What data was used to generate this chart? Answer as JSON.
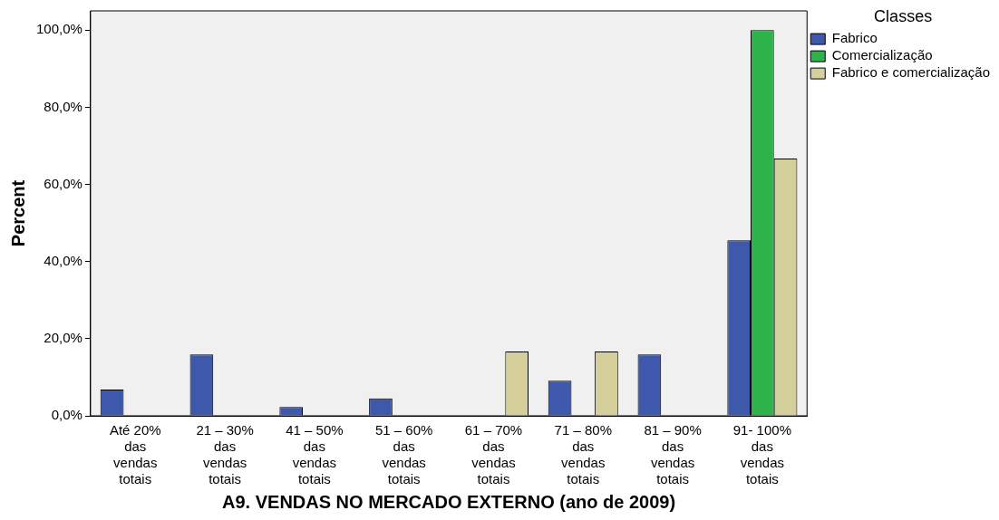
{
  "chart_data": {
    "type": "bar",
    "xlabel": "A9. VENDAS NO MERCADO EXTERNO (ano de 2009)",
    "ylabel": "Percent",
    "legend_title": "Classes",
    "legend": "top right",
    "categories": [
      "Até 20% das vendas totais",
      "21 – 30% das vendas totais",
      "41 – 50% das vendas totais",
      "51 – 60% das vendas totais",
      "61 – 70% das vendas totais",
      "71 – 80% das vendas totais",
      "81 – 90% das vendas totais",
      "91- 100% das vendas totais"
    ],
    "series": [
      {
        "name": "Fabrico",
        "color": "#3e58ac",
        "values": [
          6.8,
          15.9,
          2.3,
          4.5,
          null,
          9.1,
          15.9,
          45.5
        ]
      },
      {
        "name": "Comercialização",
        "color": "#2db34a",
        "values": [
          null,
          null,
          null,
          null,
          null,
          null,
          null,
          100
        ]
      },
      {
        "name": "Fabrico e comercialização",
        "color": "#d4cf9b",
        "values": [
          null,
          null,
          null,
          null,
          16.7,
          16.7,
          null,
          66.7
        ]
      }
    ],
    "ylim": [
      0,
      105
    ],
    "yticks": [
      {
        "value": 0,
        "label": "0,0%"
      },
      {
        "value": 20,
        "label": "20,0%"
      },
      {
        "value": 40,
        "label": "40,0%"
      },
      {
        "value": 60,
        "label": "60,0%"
      },
      {
        "value": 80,
        "label": "80,0%"
      },
      {
        "value": 100,
        "label": "100,0%"
      }
    ],
    "grid": false
  }
}
